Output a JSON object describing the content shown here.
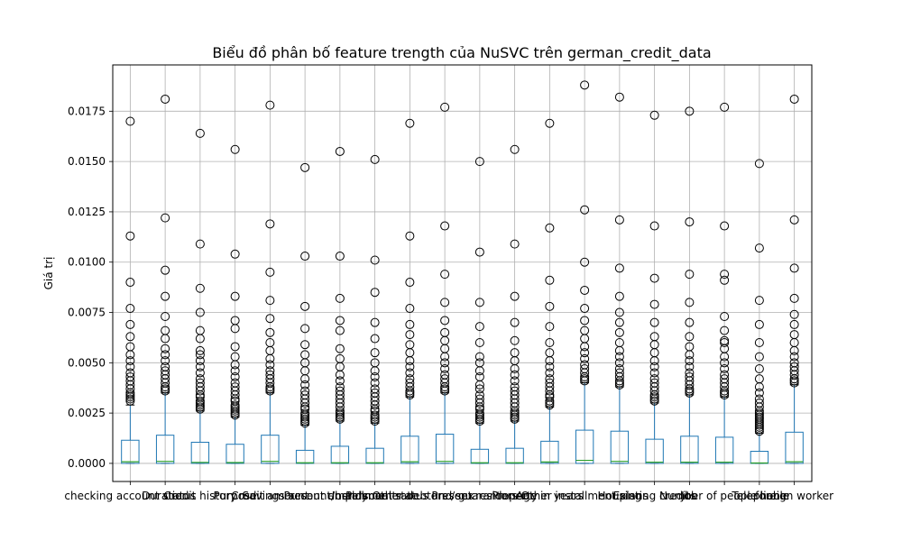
{
  "chart_data": {
    "type": "boxplot",
    "title": "Biểu đồ phân bố feature trength của NuSVC trên german_credit_data",
    "xlabel": "",
    "ylabel": "Giá trị",
    "ylim": [
      -0.0009,
      0.0198
    ],
    "yticks": [
      "0.0000",
      "0.0025",
      "0.0050",
      "0.0075",
      "0.0100",
      "0.0125",
      "0.0150",
      "0.0175"
    ],
    "grid": true,
    "colors": {
      "box": "#1f77b4",
      "median": "#2ca02c",
      "grid": "#b0b0b0",
      "flier": "#000000"
    },
    "categories": [
      "checking account status",
      "Duration",
      "Credit history",
      "Purpose",
      "Credit amount",
      "Savings account/bonds",
      "Present employment",
      "Installment rate",
      "Personal status and sex",
      "Other debtors / guarantors",
      "Present residence",
      "Property",
      "Age in years",
      "Other installment plans",
      "Housing",
      "Existing credits",
      "Job",
      "Number of people liable",
      "Telephone",
      "foreign worker"
    ],
    "series": [
      {
        "q1": 0.0,
        "median": 8e-05,
        "q3": 0.00115,
        "whisker_low": 0.0,
        "whisker_high": 0.0029,
        "fliers": [
          0.0031,
          0.0032,
          0.0033,
          0.0034,
          0.0035,
          0.0037,
          0.0039,
          0.0041,
          0.0043,
          0.0045,
          0.0048,
          0.0051,
          0.0054,
          0.0058,
          0.0063,
          0.0069,
          0.0077,
          0.009,
          0.0113,
          0.017
        ]
      },
      {
        "q1": 0.0,
        "median": 0.0001,
        "q3": 0.0014,
        "whisker_low": 0.0,
        "whisker_high": 0.0035,
        "fliers": [
          0.0036,
          0.0037,
          0.0038,
          0.004,
          0.0042,
          0.0044,
          0.0046,
          0.0048,
          0.0051,
          0.0054,
          0.0057,
          0.0062,
          0.0066,
          0.0073,
          0.0083,
          0.0096,
          0.0122,
          0.0181
        ]
      },
      {
        "q1": 0.0,
        "median": 5e-05,
        "q3": 0.00105,
        "whisker_low": 0.0,
        "whisker_high": 0.0026,
        "fliers": [
          0.0027,
          0.0028,
          0.0029,
          0.003,
          0.0031,
          0.0033,
          0.0034,
          0.0036,
          0.0038,
          0.004,
          0.0042,
          0.0045,
          0.0048,
          0.0051,
          0.0054,
          0.0056,
          0.0062,
          0.0066,
          0.0075,
          0.0087,
          0.0109,
          0.0164
        ]
      },
      {
        "q1": 0.0,
        "median": 4e-05,
        "q3": 0.00095,
        "whisker_low": 0.0,
        "whisker_high": 0.0023,
        "fliers": [
          0.0024,
          0.0025,
          0.0026,
          0.0027,
          0.0028,
          0.0029,
          0.0031,
          0.0032,
          0.0034,
          0.0036,
          0.0038,
          0.004,
          0.0043,
          0.0046,
          0.0049,
          0.0053,
          0.0058,
          0.0067,
          0.0071,
          0.0083,
          0.0104,
          0.0156
        ]
      },
      {
        "q1": 0.0,
        "median": 0.0001,
        "q3": 0.0014,
        "whisker_low": 0.0,
        "whisker_high": 0.0035,
        "fliers": [
          0.0036,
          0.0037,
          0.0038,
          0.004,
          0.0042,
          0.0044,
          0.0046,
          0.0049,
          0.0052,
          0.0056,
          0.006,
          0.0065,
          0.0072,
          0.0081,
          0.0095,
          0.0119,
          0.0178
        ]
      },
      {
        "q1": 0.0,
        "median": 3e-05,
        "q3": 0.00065,
        "whisker_low": 0.0,
        "whisker_high": 0.0019,
        "fliers": [
          0.002,
          0.0021,
          0.0022,
          0.0023,
          0.0024,
          0.0025,
          0.0027,
          0.0028,
          0.003,
          0.0032,
          0.0034,
          0.0036,
          0.0039,
          0.0042,
          0.0046,
          0.005,
          0.0054,
          0.0059,
          0.0067,
          0.0078,
          0.0103,
          0.0147
        ]
      },
      {
        "q1": 0.0,
        "median": 3e-05,
        "q3": 0.00085,
        "whisker_low": 0.0,
        "whisker_high": 0.0021,
        "fliers": [
          0.0022,
          0.0023,
          0.0024,
          0.0025,
          0.0026,
          0.0028,
          0.003,
          0.0032,
          0.0034,
          0.0036,
          0.0038,
          0.0041,
          0.0044,
          0.0048,
          0.0052,
          0.0057,
          0.0066,
          0.0071,
          0.0082,
          0.0103,
          0.0155
        ]
      },
      {
        "q1": 0.0,
        "median": 3e-05,
        "q3": 0.00075,
        "whisker_low": 0.0,
        "whisker_high": 0.002,
        "fliers": [
          0.0021,
          0.0022,
          0.0023,
          0.0024,
          0.0026,
          0.0027,
          0.0029,
          0.0031,
          0.0033,
          0.0035,
          0.0037,
          0.004,
          0.0043,
          0.0046,
          0.005,
          0.0055,
          0.0062,
          0.007,
          0.0085,
          0.0101,
          0.0151
        ]
      },
      {
        "q1": 0.0,
        "median": 8e-05,
        "q3": 0.00135,
        "whisker_low": 0.0,
        "whisker_high": 0.0033,
        "fliers": [
          0.0034,
          0.0035,
          0.0036,
          0.0038,
          0.004,
          0.0042,
          0.0045,
          0.0048,
          0.0051,
          0.0055,
          0.0059,
          0.0064,
          0.0069,
          0.0077,
          0.009,
          0.0113,
          0.0169
        ]
      },
      {
        "q1": 0.0,
        "median": 0.0001,
        "q3": 0.00145,
        "whisker_low": 0.0,
        "whisker_high": 0.0035,
        "fliers": [
          0.0036,
          0.0037,
          0.0038,
          0.004,
          0.0042,
          0.0044,
          0.0047,
          0.005,
          0.0053,
          0.0057,
          0.0061,
          0.0065,
          0.0071,
          0.008,
          0.0094,
          0.0118,
          0.0177
        ]
      },
      {
        "q1": 0.0,
        "median": 3e-05,
        "q3": 0.0007,
        "whisker_low": 0.0,
        "whisker_high": 0.002,
        "fliers": [
          0.0021,
          0.0022,
          0.0023,
          0.0024,
          0.0025,
          0.0027,
          0.0028,
          0.003,
          0.0032,
          0.0034,
          0.0037,
          0.0039,
          0.0043,
          0.0046,
          0.005,
          0.0053,
          0.006,
          0.0068,
          0.008,
          0.0105,
          0.015
        ]
      },
      {
        "q1": 0.0,
        "median": 3e-05,
        "q3": 0.00075,
        "whisker_low": 0.0,
        "whisker_high": 0.0021,
        "fliers": [
          0.0022,
          0.0023,
          0.0024,
          0.0025,
          0.0026,
          0.0028,
          0.003,
          0.0032,
          0.0034,
          0.0036,
          0.0038,
          0.0041,
          0.0044,
          0.0047,
          0.0051,
          0.0055,
          0.0061,
          0.007,
          0.0083,
          0.0109,
          0.0156
        ]
      },
      {
        "q1": 0.0,
        "median": 7e-05,
        "q3": 0.0011,
        "whisker_low": 0.0,
        "whisker_high": 0.0028,
        "fliers": [
          0.0029,
          0.003,
          0.0031,
          0.0033,
          0.0034,
          0.0036,
          0.0038,
          0.004,
          0.0042,
          0.0045,
          0.0048,
          0.0051,
          0.0055,
          0.006,
          0.0068,
          0.0078,
          0.0091,
          0.0117,
          0.0169
        ]
      },
      {
        "q1": 0.0,
        "median": 0.00015,
        "q3": 0.00165,
        "whisker_low": 0.0,
        "whisker_high": 0.004,
        "fliers": [
          0.0041,
          0.0042,
          0.0043,
          0.0045,
          0.0047,
          0.0049,
          0.0052,
          0.0055,
          0.0058,
          0.0062,
          0.0066,
          0.0071,
          0.0077,
          0.0086,
          0.01,
          0.0126,
          0.0188
        ]
      },
      {
        "q1": 0.0,
        "median": 0.0001,
        "q3": 0.0016,
        "whisker_low": 0.0,
        "whisker_high": 0.0038,
        "fliers": [
          0.0039,
          0.004,
          0.0041,
          0.0043,
          0.0045,
          0.0047,
          0.005,
          0.0053,
          0.0056,
          0.006,
          0.0065,
          0.007,
          0.0075,
          0.0083,
          0.0097,
          0.0121,
          0.0182
        ]
      },
      {
        "q1": 0.0,
        "median": 6e-05,
        "q3": 0.0012,
        "whisker_low": 0.0,
        "whisker_high": 0.003,
        "fliers": [
          0.0031,
          0.0032,
          0.0033,
          0.0034,
          0.0036,
          0.0038,
          0.004,
          0.0042,
          0.0045,
          0.0048,
          0.0051,
          0.0055,
          0.0059,
          0.0063,
          0.007,
          0.0079,
          0.0092,
          0.0118,
          0.0173
        ]
      },
      {
        "q1": 0.0,
        "median": 6e-05,
        "q3": 0.00135,
        "whisker_low": 0.0,
        "whisker_high": 0.0034,
        "fliers": [
          0.0035,
          0.0036,
          0.0037,
          0.0039,
          0.0041,
          0.0043,
          0.0045,
          0.0048,
          0.0051,
          0.0054,
          0.0058,
          0.0063,
          0.007,
          0.008,
          0.0094,
          0.012,
          0.0175
        ]
      },
      {
        "q1": 0.0,
        "median": 6e-05,
        "q3": 0.0013,
        "whisker_low": 0.0,
        "whisker_high": 0.0033,
        "fliers": [
          0.0034,
          0.0035,
          0.0036,
          0.0038,
          0.004,
          0.0042,
          0.0044,
          0.0047,
          0.005,
          0.0053,
          0.0057,
          0.006,
          0.0061,
          0.0066,
          0.0073,
          0.0091,
          0.0094,
          0.0118,
          0.0177
        ]
      },
      {
        "q1": 0.0,
        "median": 2e-05,
        "q3": 0.0006,
        "whisker_low": 0.0,
        "whisker_high": 0.0015,
        "fliers": [
          0.0016,
          0.0017,
          0.0018,
          0.0019,
          0.002,
          0.0021,
          0.0022,
          0.0023,
          0.0024,
          0.0025,
          0.0026,
          0.0028,
          0.003,
          0.0032,
          0.0035,
          0.0038,
          0.0042,
          0.0047,
          0.0053,
          0.006,
          0.0069,
          0.0081,
          0.0107,
          0.0149
        ]
      },
      {
        "q1": 0.0,
        "median": 8e-05,
        "q3": 0.00155,
        "whisker_low": 0.0,
        "whisker_high": 0.0039,
        "fliers": [
          0.004,
          0.0041,
          0.0042,
          0.0044,
          0.0046,
          0.0048,
          0.005,
          0.0053,
          0.0056,
          0.006,
          0.0064,
          0.0069,
          0.0074,
          0.0082,
          0.0097,
          0.0121,
          0.0181
        ]
      }
    ]
  }
}
